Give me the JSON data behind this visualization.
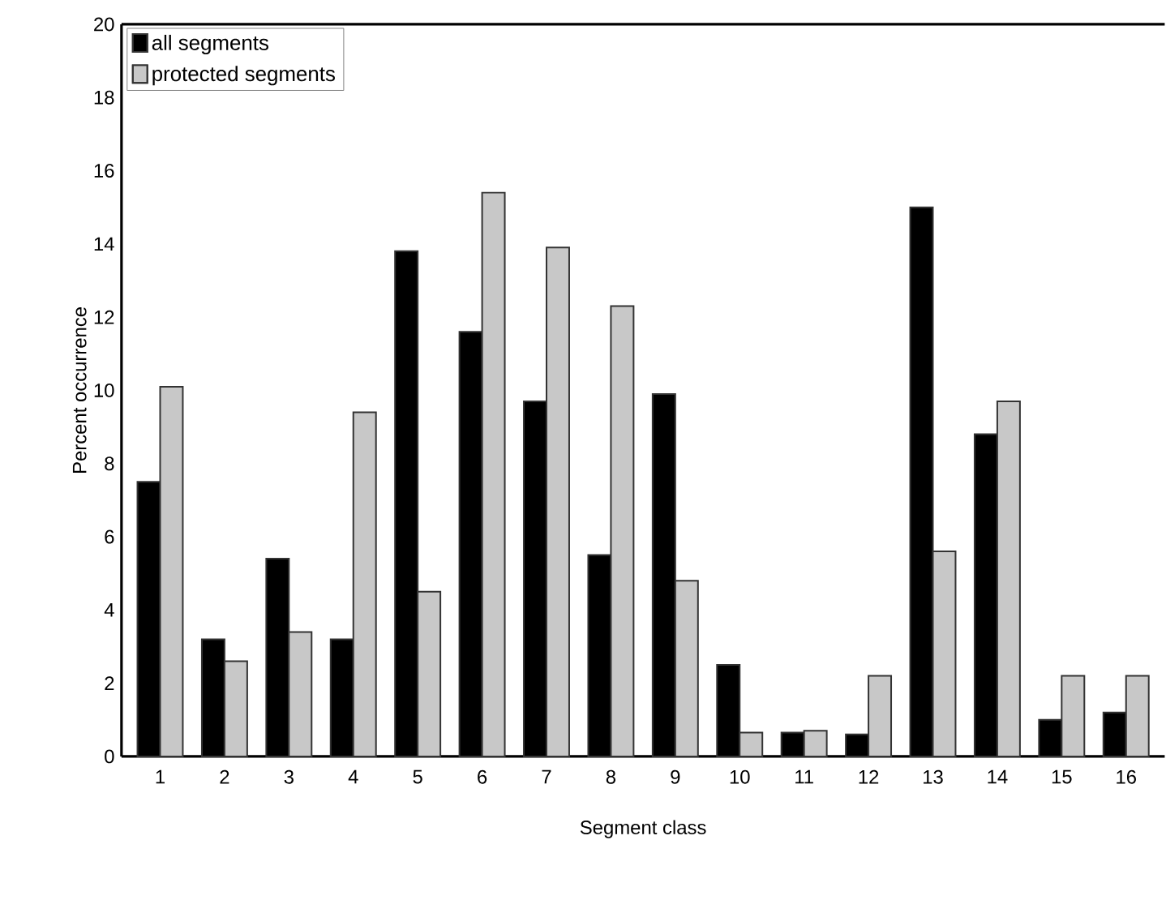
{
  "chart_data": {
    "type": "bar",
    "xlabel": "Segment class",
    "ylabel": "Percent occurrence",
    "categories": [
      "1",
      "2",
      "3",
      "4",
      "5",
      "6",
      "7",
      "8",
      "9",
      "10",
      "11",
      "12",
      "13",
      "14",
      "15",
      "16"
    ],
    "series": [
      {
        "name": "all segments",
        "color": "#000000",
        "values": [
          7.5,
          3.2,
          5.4,
          3.2,
          13.8,
          11.6,
          9.7,
          5.5,
          9.9,
          2.5,
          0.65,
          0.6,
          15.0,
          8.8,
          1.0,
          1.2
        ]
      },
      {
        "name": "protected segments",
        "color": "#c8c8c8",
        "values": [
          10.1,
          2.6,
          3.4,
          9.4,
          4.5,
          15.4,
          13.9,
          12.3,
          4.8,
          0.65,
          0.7,
          2.2,
          5.6,
          9.7,
          2.2,
          2.2
        ]
      }
    ],
    "ylim": [
      0,
      20
    ],
    "yticks": [
      0,
      2,
      4,
      6,
      8,
      10,
      12,
      14,
      16,
      18,
      20
    ],
    "grid": false,
    "legend": "top left"
  }
}
